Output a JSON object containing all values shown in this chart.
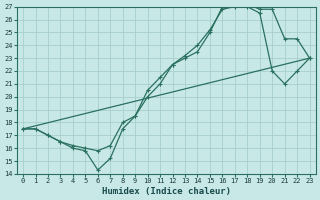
{
  "xlabel": "Humidex (Indice chaleur)",
  "bg_color": "#c8e8e8",
  "grid_color": "#a8cece",
  "line_color": "#2a7060",
  "xlim": [
    -0.5,
    23.5
  ],
  "ylim": [
    14,
    27
  ],
  "xticks": [
    0,
    1,
    2,
    3,
    4,
    5,
    6,
    7,
    8,
    9,
    10,
    11,
    12,
    13,
    14,
    15,
    16,
    17,
    18,
    19,
    20,
    21,
    22,
    23
  ],
  "yticks": [
    14,
    15,
    16,
    17,
    18,
    19,
    20,
    21,
    22,
    23,
    24,
    25,
    26,
    27
  ],
  "line1_x": [
    0,
    1,
    2,
    3,
    4,
    5,
    6,
    7,
    8,
    9,
    10,
    11,
    12,
    13,
    14,
    15,
    16,
    17,
    18,
    19,
    20,
    21,
    22,
    23
  ],
  "line1_y": [
    17.5,
    17.5,
    17.0,
    16.5,
    16.2,
    16.0,
    15.8,
    16.2,
    18.0,
    18.5,
    20.5,
    21.5,
    22.5,
    23.2,
    24.0,
    25.2,
    26.8,
    27.0,
    27.2,
    26.8,
    26.8,
    24.5,
    24.5,
    23.0
  ],
  "line2_x": [
    0,
    1,
    2,
    3,
    4,
    5,
    6,
    7,
    8,
    9,
    10,
    11,
    12,
    13,
    14,
    15,
    16,
    17,
    18,
    19,
    20,
    21,
    22,
    23
  ],
  "line2_y": [
    17.5,
    17.5,
    17.0,
    16.5,
    16.0,
    15.8,
    14.3,
    15.2,
    17.5,
    18.5,
    20.0,
    21.0,
    22.5,
    23.0,
    23.5,
    25.0,
    27.0,
    27.2,
    27.0,
    26.5,
    22.0,
    21.0,
    22.0,
    23.0
  ],
  "line3_x": [
    0,
    23
  ],
  "line3_y": [
    17.5,
    23.0
  ]
}
